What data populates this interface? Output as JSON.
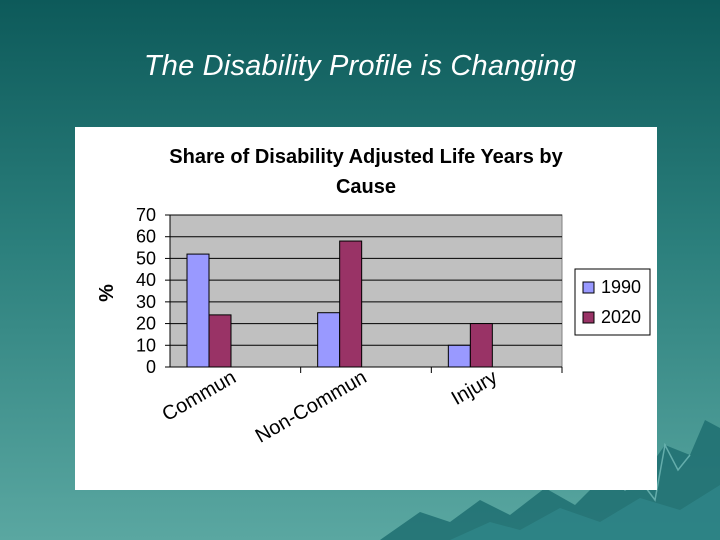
{
  "slide": {
    "title": "The Disability Profile is Changing"
  },
  "chart_data": {
    "type": "bar",
    "title": "Share of Disability Adjusted Life Years by Cause",
    "title_lines": [
      "Share of Disability Adjusted Life Years by",
      "Cause"
    ],
    "xlabel": "",
    "ylabel": "%",
    "ylim": [
      0,
      70
    ],
    "yticks": [
      0,
      10,
      20,
      30,
      40,
      50,
      60,
      70
    ],
    "grid": true,
    "legend_position": "right",
    "categories": [
      "Commun",
      "Non-Commun",
      "Injury"
    ],
    "series": [
      {
        "name": "1990",
        "values": [
          52,
          25,
          10
        ],
        "color": "#9999ff"
      },
      {
        "name": "2020",
        "values": [
          24,
          58,
          20
        ],
        "color": "#993366"
      }
    ],
    "plot_background": "#c0c0c0"
  }
}
